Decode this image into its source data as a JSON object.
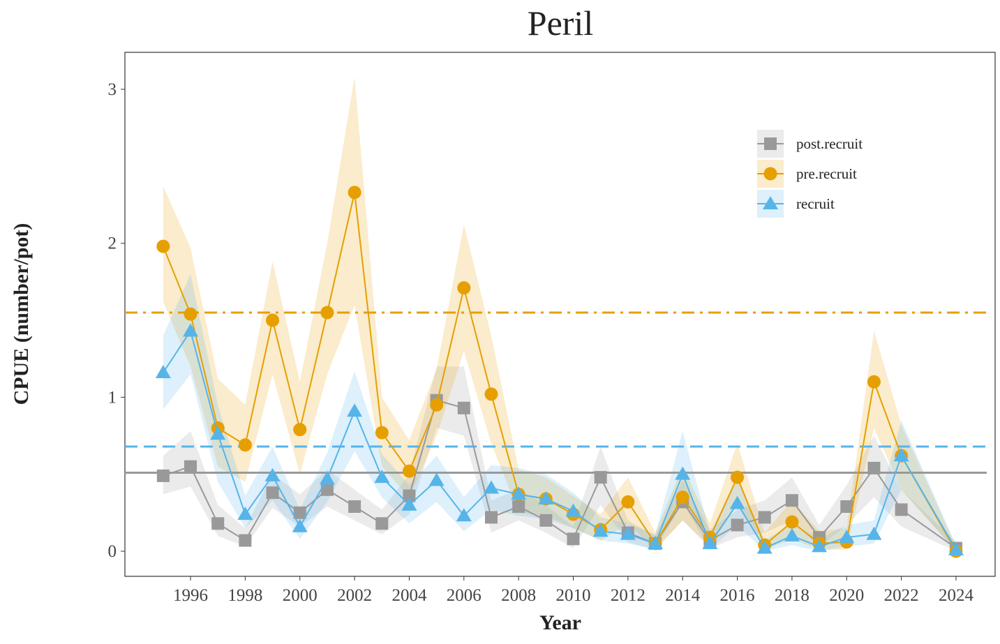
{
  "chart_data": {
    "type": "line",
    "title": "Peril",
    "x_label": "Year",
    "y_label": "CPUE (number/pot)",
    "x": [
      1995,
      1996,
      1997,
      1998,
      1999,
      2000,
      2001,
      2002,
      2003,
      2004,
      2005,
      2006,
      2007,
      2008,
      2009,
      2010,
      2011,
      2012,
      2013,
      2014,
      2015,
      2016,
      2017,
      2018,
      2019,
      2020,
      2021,
      2022,
      2024
    ],
    "xlim": [
      1993.6,
      2025.43
    ],
    "xticks": [
      1996,
      1998,
      2000,
      2002,
      2004,
      2006,
      2008,
      2010,
      2012,
      2014,
      2016,
      2018,
      2020,
      2022,
      2024
    ],
    "ylim": [
      -0.163,
      3.24
    ],
    "yticks": [
      0,
      1,
      2,
      3
    ],
    "grid": false,
    "legend": "top right",
    "series": [
      {
        "name": "post.recruit",
        "color": "#999999",
        "marker": "square",
        "reference": 0.51,
        "reference_style": "solid",
        "values": [
          0.49,
          0.55,
          0.18,
          0.07,
          0.38,
          0.25,
          0.4,
          0.29,
          0.18,
          0.36,
          0.98,
          0.93,
          0.22,
          0.29,
          0.2,
          0.08,
          0.48,
          0.12,
          0.05,
          0.32,
          0.07,
          0.17,
          0.22,
          0.33,
          0.09,
          0.29,
          0.54,
          0.27,
          0.02
        ],
        "lower": [
          0.37,
          0.42,
          0.1,
          0.03,
          0.28,
          0.16,
          0.29,
          0.2,
          0.11,
          0.24,
          0.8,
          0.75,
          0.12,
          0.2,
          0.12,
          0.02,
          0.3,
          0.06,
          0.01,
          0.2,
          0.02,
          0.09,
          0.12,
          0.2,
          0.03,
          0.17,
          0.35,
          0.16,
          0.0
        ],
        "upper": [
          0.62,
          0.78,
          0.3,
          0.15,
          0.5,
          0.37,
          0.53,
          0.4,
          0.27,
          0.5,
          1.2,
          1.2,
          0.33,
          0.4,
          0.3,
          0.16,
          0.68,
          0.2,
          0.1,
          0.46,
          0.14,
          0.27,
          0.33,
          0.48,
          0.17,
          0.43,
          0.75,
          0.4,
          0.06
        ]
      },
      {
        "name": "pre.recruit",
        "color": "#E69F00",
        "marker": "circle",
        "reference": 1.55,
        "reference_style": "dashdot",
        "values": [
          1.98,
          1.54,
          0.8,
          0.69,
          1.5,
          0.79,
          1.55,
          2.33,
          0.77,
          0.52,
          0.95,
          1.71,
          1.02,
          0.37,
          0.34,
          0.24,
          0.14,
          0.32,
          0.05,
          0.35,
          0.09,
          0.48,
          0.04,
          0.19,
          0.05,
          0.06,
          1.1,
          0.62,
          0.0
        ],
        "lower": [
          1.62,
          1.2,
          0.55,
          0.45,
          1.15,
          0.5,
          1.15,
          1.6,
          0.55,
          0.35,
          0.75,
          1.3,
          0.7,
          0.25,
          0.23,
          0.15,
          0.07,
          0.18,
          0.01,
          0.2,
          0.03,
          0.3,
          0.01,
          0.08,
          0.01,
          0.01,
          0.8,
          0.4,
          0.0
        ],
        "upper": [
          2.37,
          1.97,
          1.12,
          0.95,
          1.88,
          1.1,
          2.0,
          3.08,
          1.0,
          0.72,
          1.18,
          2.12,
          1.4,
          0.53,
          0.48,
          0.36,
          0.24,
          0.48,
          0.12,
          0.55,
          0.18,
          0.7,
          0.12,
          0.33,
          0.13,
          0.15,
          1.43,
          0.82,
          0.03
        ]
      },
      {
        "name": "recruit",
        "color": "#56B4E9",
        "marker": "triangle",
        "reference": 0.68,
        "reference_style": "dashed",
        "values": [
          1.16,
          1.43,
          0.76,
          0.24,
          0.49,
          0.16,
          0.47,
          0.91,
          0.48,
          0.3,
          0.46,
          0.23,
          0.41,
          0.37,
          0.34,
          0.26,
          0.13,
          0.11,
          0.05,
          0.5,
          0.05,
          0.31,
          0.02,
          0.1,
          0.03,
          0.09,
          0.11,
          0.62,
          0.01
        ],
        "lower": [
          0.92,
          1.15,
          0.45,
          0.15,
          0.33,
          0.08,
          0.32,
          0.65,
          0.35,
          0.18,
          0.32,
          0.13,
          0.27,
          0.23,
          0.21,
          0.15,
          0.07,
          0.05,
          0.01,
          0.32,
          0.01,
          0.17,
          0.0,
          0.04,
          0.0,
          0.03,
          0.05,
          0.4,
          0.0
        ],
        "upper": [
          1.4,
          1.8,
          0.95,
          0.36,
          0.68,
          0.27,
          0.64,
          1.17,
          0.63,
          0.43,
          0.62,
          0.35,
          0.56,
          0.54,
          0.5,
          0.38,
          0.22,
          0.18,
          0.11,
          0.78,
          0.12,
          0.48,
          0.07,
          0.18,
          0.08,
          0.17,
          0.2,
          0.85,
          0.04
        ]
      }
    ]
  }
}
